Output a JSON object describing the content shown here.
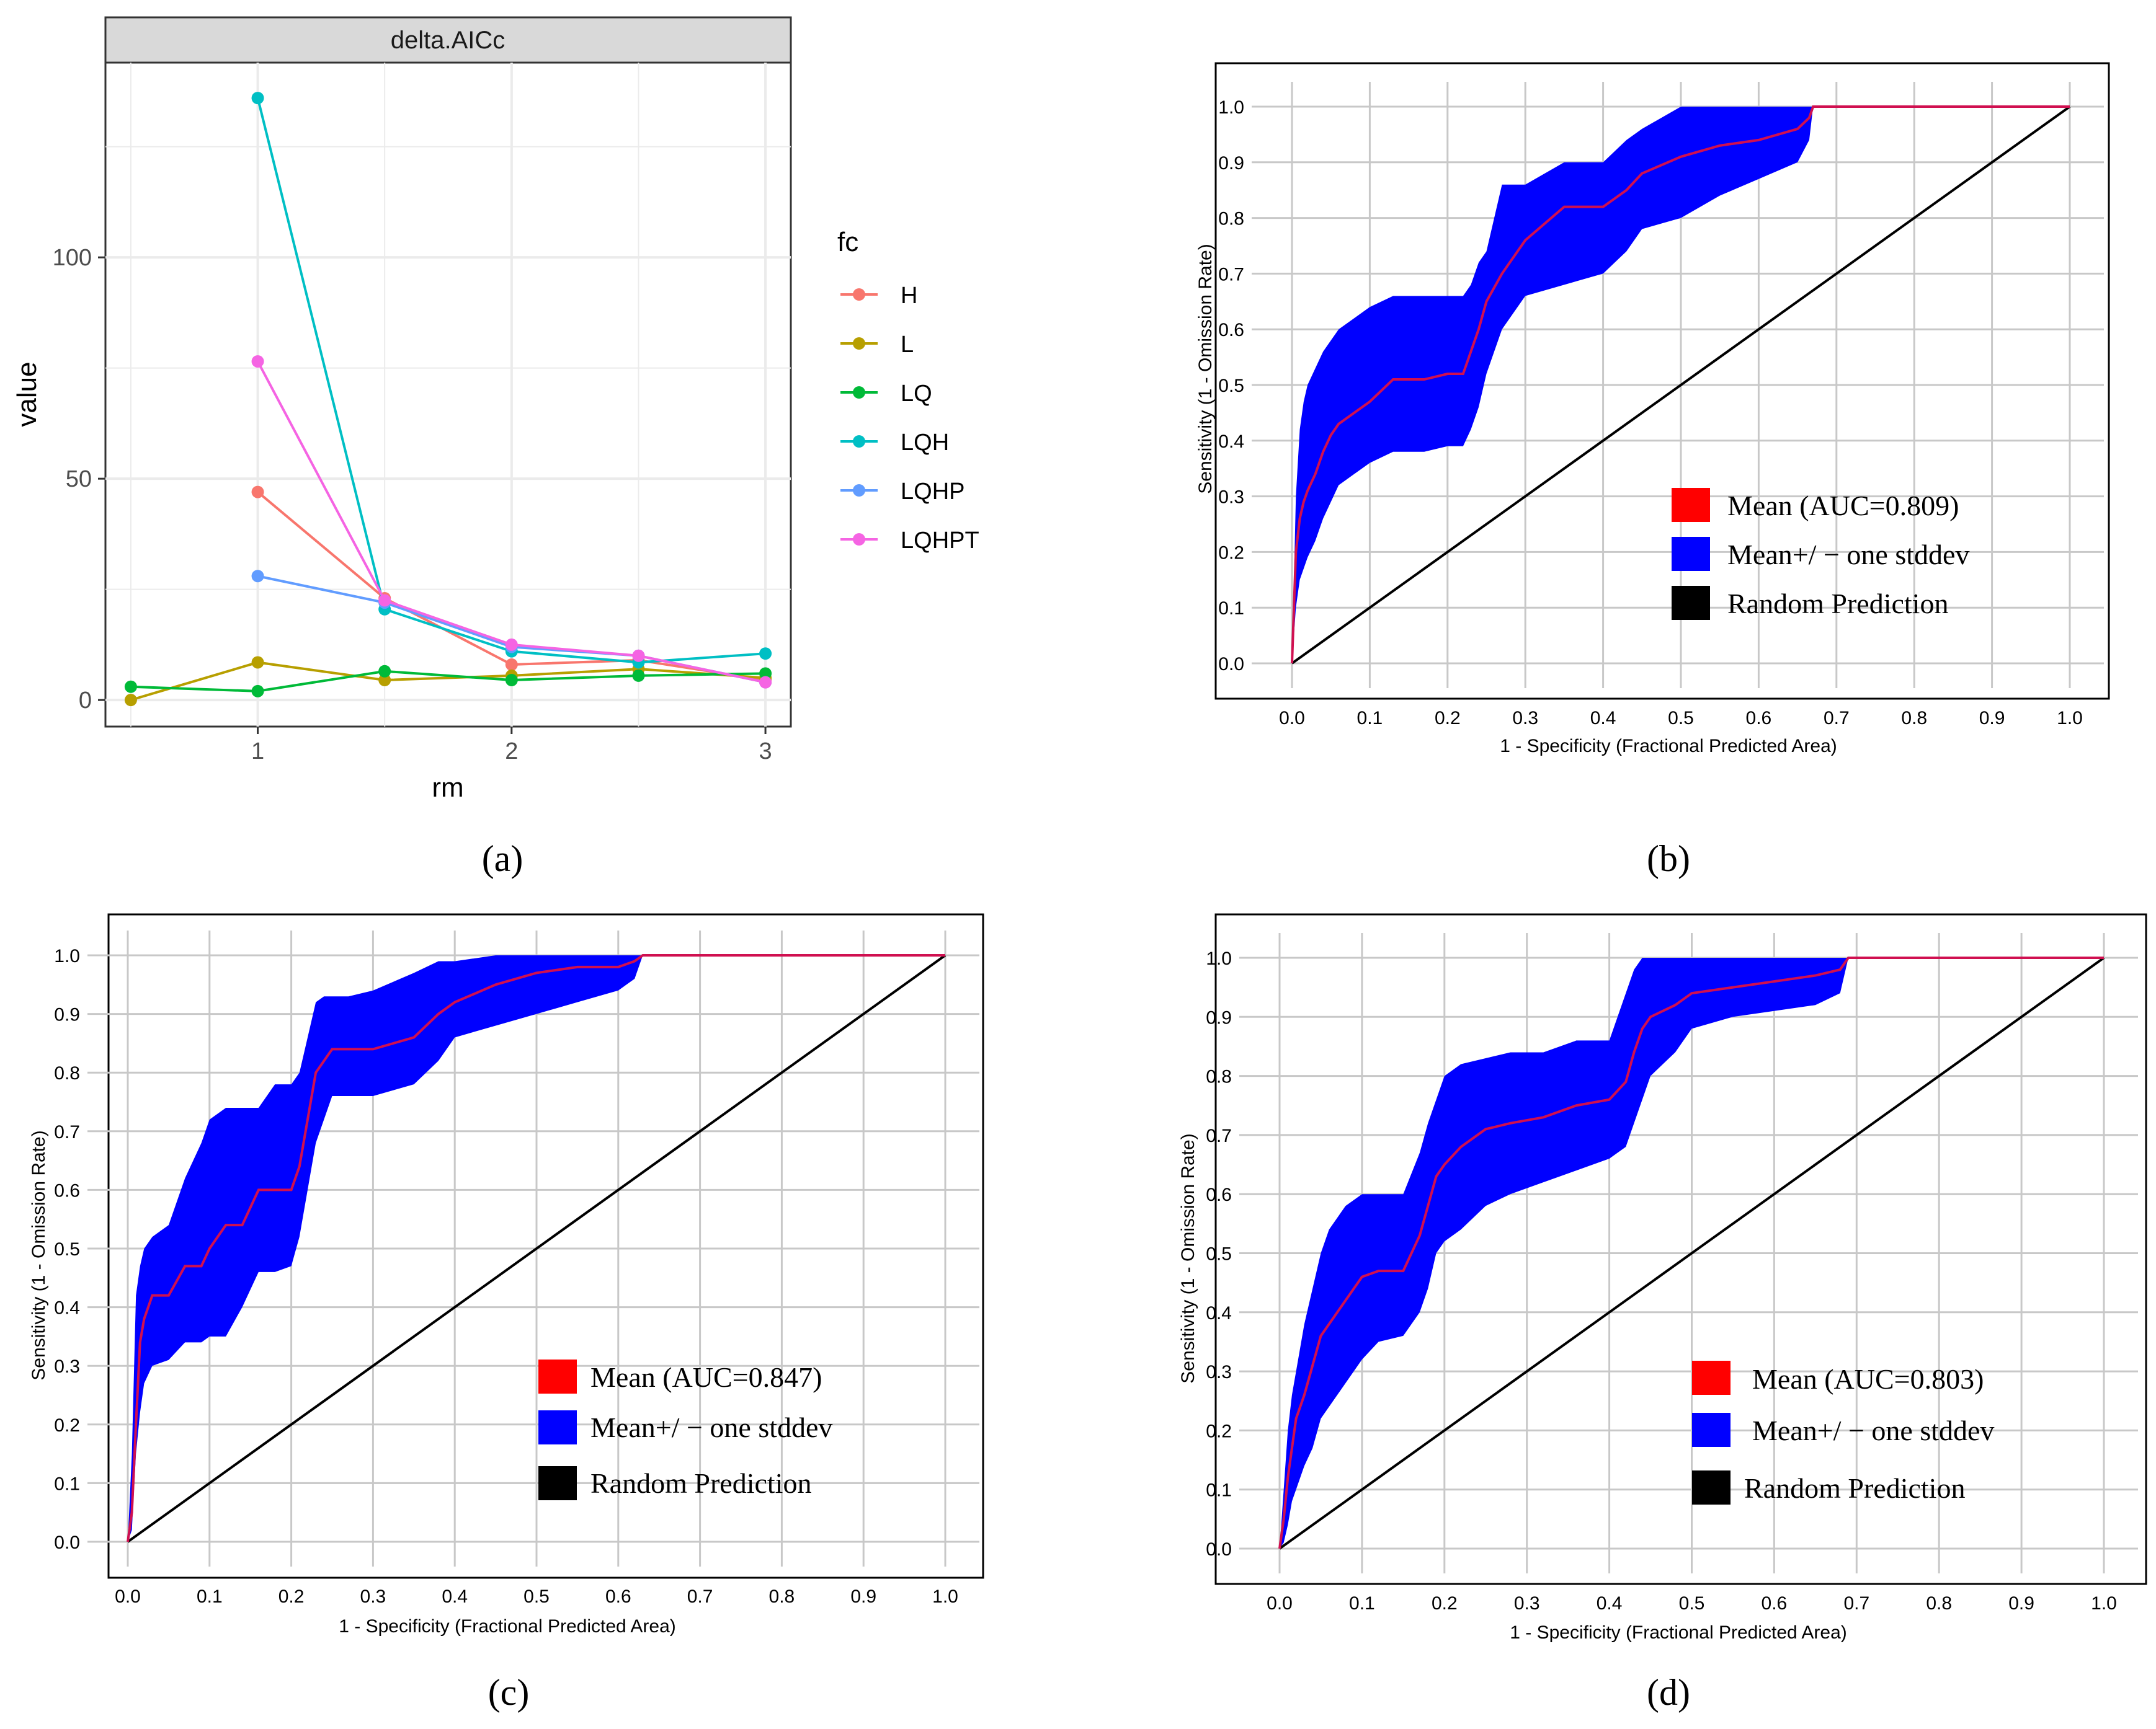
{
  "colors": {
    "H": "#f8766d",
    "L": "#b79f00",
    "LQ": "#00ba38",
    "LQH": "#00bfc4",
    "LQHP": "#619cff",
    "LQHPT": "#f564e3",
    "mean": "#ff0000",
    "stddev": "#0000ff",
    "random": "#000000",
    "grid_roc": "#c8c8c8",
    "grid_gg": "#ebebeb",
    "strip": "#d9d9d9"
  },
  "chart_data": [
    {
      "type": "line",
      "panel_label": "(a)",
      "strip": "delta.AICc",
      "xlabel": "rm",
      "ylabel": "value",
      "xlim": [
        0.4,
        3.1
      ],
      "ylim": [
        -6,
        144
      ],
      "x_ticks": [
        1,
        2,
        3
      ],
      "y_ticks": [
        0,
        50,
        100
      ],
      "legend_title": "fc",
      "series": [
        {
          "name": "H",
          "x": [
            1,
            1.5,
            2,
            2.5,
            3
          ],
          "y": [
            47,
            23,
            8,
            9,
            4.5
          ]
        },
        {
          "name": "L",
          "x": [
            0.5,
            1,
            1.5,
            2,
            2.5,
            3
          ],
          "y": [
            0,
            8.5,
            4.5,
            5.5,
            7,
            5
          ]
        },
        {
          "name": "LQ",
          "x": [
            0.5,
            1,
            1.5,
            2,
            2.5,
            3
          ],
          "y": [
            3,
            2,
            6.5,
            4.5,
            5.5,
            6
          ]
        },
        {
          "name": "LQH",
          "x": [
            1,
            1.5,
            2,
            2.5,
            3
          ],
          "y": [
            136,
            20.5,
            11,
            8.5,
            10.5
          ]
        },
        {
          "name": "LQHP",
          "x": [
            1,
            1.5,
            2,
            2.5,
            3
          ],
          "y": [
            28,
            22,
            12,
            10,
            4
          ]
        },
        {
          "name": "LQHPT",
          "x": [
            1,
            1.5,
            2,
            2.5,
            3
          ],
          "y": [
            76.5,
            22.5,
            12.5,
            10,
            4
          ]
        }
      ]
    },
    {
      "type": "area",
      "panel_label": "(b)",
      "xlabel": "1 - Specificity (Fractional Predicted Area)",
      "ylabel": "Sensitivity (1 - Omission Rate)",
      "x_ticks": [
        "0.0",
        "0.1",
        "0.2",
        "0.3",
        "0.4",
        "0.5",
        "0.6",
        "0.7",
        "0.8",
        "0.9",
        "1.0"
      ],
      "y_ticks": [
        "0.0",
        "0.1",
        "0.2",
        "0.3",
        "0.4",
        "0.5",
        "0.6",
        "0.7",
        "0.8",
        "0.9",
        "1.0"
      ],
      "legend": [
        "Mean  (AUC=0.809)",
        "Mean+/ − one stddev",
        "Random Prediction"
      ],
      "auc": 0.809,
      "mean": {
        "x": [
          0,
          0.005,
          0.01,
          0.015,
          0.02,
          0.03,
          0.04,
          0.05,
          0.06,
          0.08,
          0.1,
          0.13,
          0.17,
          0.2,
          0.22,
          0.23,
          0.24,
          0.25,
          0.27,
          0.3,
          0.35,
          0.4,
          0.43,
          0.45,
          0.5,
          0.55,
          0.6,
          0.65,
          0.665,
          0.67,
          1.0
        ],
        "y": [
          0,
          0.2,
          0.26,
          0.29,
          0.31,
          0.34,
          0.38,
          0.41,
          0.43,
          0.45,
          0.47,
          0.51,
          0.51,
          0.52,
          0.52,
          0.56,
          0.6,
          0.65,
          0.7,
          0.76,
          0.82,
          0.82,
          0.85,
          0.88,
          0.91,
          0.93,
          0.94,
          0.96,
          0.98,
          1.0,
          1.0
        ]
      },
      "band_upper": [
        0,
        0.3,
        0.42,
        0.47,
        0.5,
        0.53,
        0.56,
        0.58,
        0.6,
        0.62,
        0.64,
        0.66,
        0.66,
        0.66,
        0.66,
        0.68,
        0.72,
        0.74,
        0.86,
        0.86,
        0.9,
        0.9,
        0.94,
        0.96,
        1.0,
        1.0,
        1.0,
        1.0,
        1.0,
        1.0,
        1.0
      ],
      "band_lower": [
        0,
        0.1,
        0.15,
        0.17,
        0.19,
        0.22,
        0.26,
        0.29,
        0.32,
        0.34,
        0.36,
        0.38,
        0.38,
        0.39,
        0.39,
        0.42,
        0.46,
        0.52,
        0.6,
        0.66,
        0.68,
        0.7,
        0.74,
        0.78,
        0.8,
        0.84,
        0.87,
        0.9,
        0.94,
        1.0,
        1.0
      ]
    },
    {
      "type": "area",
      "panel_label": "(c)",
      "xlabel": "1 - Specificity (Fractional Predicted Area)",
      "ylabel": "Sensitivity (1 - Omission Rate)",
      "x_ticks": [
        "0.0",
        "0.1",
        "0.2",
        "0.3",
        "0.4",
        "0.5",
        "0.6",
        "0.7",
        "0.8",
        "0.9",
        "1.0"
      ],
      "y_ticks": [
        "0.0",
        "0.1",
        "0.2",
        "0.3",
        "0.4",
        "0.5",
        "0.6",
        "0.7",
        "0.8",
        "0.9",
        "1.0"
      ],
      "legend": [
        "Mean  (AUC=0.847)",
        "Mean+/ − one stddev",
        "Random Prediction"
      ],
      "auc": 0.847,
      "mean": {
        "x": [
          0,
          0.005,
          0.01,
          0.015,
          0.02,
          0.03,
          0.05,
          0.07,
          0.09,
          0.1,
          0.12,
          0.14,
          0.16,
          0.18,
          0.2,
          0.21,
          0.22,
          0.23,
          0.24,
          0.25,
          0.27,
          0.3,
          0.35,
          0.38,
          0.4,
          0.45,
          0.5,
          0.55,
          0.6,
          0.62,
          0.63,
          1.0
        ],
        "y": [
          0,
          0.05,
          0.2,
          0.34,
          0.38,
          0.42,
          0.42,
          0.47,
          0.47,
          0.5,
          0.54,
          0.54,
          0.6,
          0.6,
          0.6,
          0.64,
          0.72,
          0.8,
          0.82,
          0.84,
          0.84,
          0.84,
          0.86,
          0.9,
          0.92,
          0.95,
          0.97,
          0.98,
          0.98,
          0.99,
          1.0,
          1.0
        ]
      },
      "band_upper": [
        0,
        0.15,
        0.42,
        0.47,
        0.5,
        0.52,
        0.54,
        0.62,
        0.68,
        0.72,
        0.74,
        0.74,
        0.74,
        0.78,
        0.78,
        0.8,
        0.86,
        0.92,
        0.93,
        0.93,
        0.93,
        0.94,
        0.97,
        0.99,
        0.99,
        1.0,
        1.0,
        1.0,
        1.0,
        1.0,
        1.0,
        1.0
      ],
      "band_lower": [
        0,
        0.02,
        0.15,
        0.22,
        0.27,
        0.3,
        0.31,
        0.34,
        0.34,
        0.35,
        0.35,
        0.4,
        0.46,
        0.46,
        0.47,
        0.52,
        0.6,
        0.68,
        0.72,
        0.76,
        0.76,
        0.76,
        0.78,
        0.82,
        0.86,
        0.88,
        0.9,
        0.92,
        0.94,
        0.96,
        1.0,
        1.0
      ]
    },
    {
      "type": "area",
      "panel_label": "(d)",
      "xlabel": "1 - Specificity (Fractional Predicted Area)",
      "ylabel": "Sensitivity (1 - Omission Rate)",
      "x_ticks": [
        "0.0",
        "0.1",
        "0.2",
        "0.3",
        "0.4",
        "0.5",
        "0.6",
        "0.7",
        "0.8",
        "0.9",
        "1.0"
      ],
      "y_ticks": [
        "0.0",
        "0.1",
        "0.2",
        "0.3",
        "0.4",
        "0.5",
        "0.6",
        "0.7",
        "0.8",
        "0.9",
        "1.0"
      ],
      "legend": [
        "Mean  (AUC=0.803)",
        "Mean+/ − one stddev",
        "Random Prediction"
      ],
      "auc": 0.803,
      "mean": {
        "x": [
          0,
          0.005,
          0.01,
          0.015,
          0.02,
          0.03,
          0.04,
          0.05,
          0.06,
          0.08,
          0.1,
          0.12,
          0.15,
          0.17,
          0.18,
          0.19,
          0.2,
          0.22,
          0.25,
          0.28,
          0.32,
          0.36,
          0.4,
          0.42,
          0.43,
          0.44,
          0.45,
          0.48,
          0.5,
          0.55,
          0.6,
          0.65,
          0.68,
          0.69,
          1.0
        ],
        "y": [
          0,
          0.05,
          0.12,
          0.17,
          0.22,
          0.26,
          0.31,
          0.36,
          0.38,
          0.42,
          0.46,
          0.47,
          0.47,
          0.53,
          0.58,
          0.63,
          0.65,
          0.68,
          0.71,
          0.72,
          0.73,
          0.75,
          0.76,
          0.79,
          0.84,
          0.88,
          0.9,
          0.92,
          0.94,
          0.95,
          0.96,
          0.97,
          0.98,
          1.0,
          1.0
        ]
      },
      "band_upper": [
        0,
        0.1,
        0.2,
        0.26,
        0.3,
        0.38,
        0.44,
        0.5,
        0.54,
        0.58,
        0.6,
        0.6,
        0.6,
        0.67,
        0.72,
        0.76,
        0.8,
        0.82,
        0.83,
        0.84,
        0.84,
        0.86,
        0.86,
        0.94,
        0.98,
        1.0,
        1.0,
        1.0,
        1.0,
        1.0,
        1.0,
        1.0,
        1.0,
        1.0,
        1.0
      ],
      "band_lower": [
        0,
        0.01,
        0.04,
        0.08,
        0.1,
        0.14,
        0.17,
        0.22,
        0.24,
        0.28,
        0.32,
        0.35,
        0.36,
        0.4,
        0.44,
        0.5,
        0.52,
        0.54,
        0.58,
        0.6,
        0.62,
        0.64,
        0.66,
        0.68,
        0.72,
        0.76,
        0.8,
        0.84,
        0.88,
        0.9,
        0.91,
        0.92,
        0.94,
        1.0,
        1.0
      ]
    }
  ]
}
